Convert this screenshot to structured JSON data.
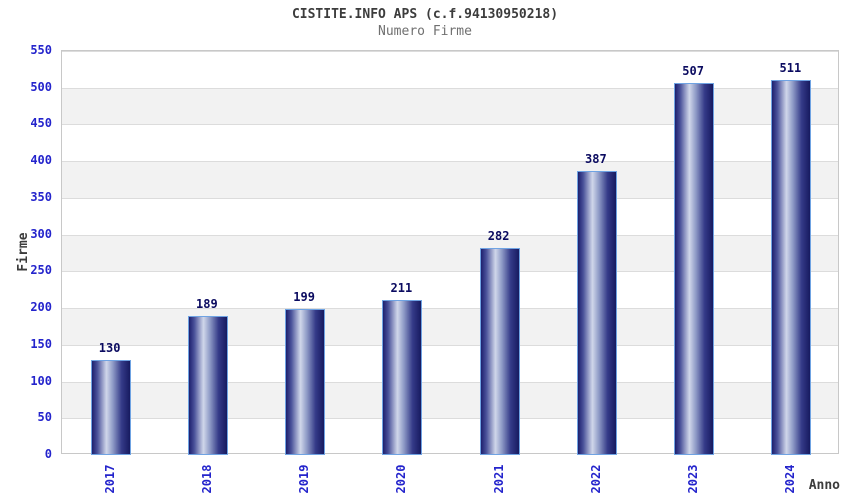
{
  "chart_data": {
    "type": "bar",
    "title": "CISTITE.INFO APS (c.f.94130950218)",
    "subtitle": "Numero Firme",
    "xlabel": "Anno",
    "ylabel": "Firme",
    "categories": [
      "2017",
      "2018",
      "2019",
      "2020",
      "2021",
      "2022",
      "2023",
      "2024"
    ],
    "values": [
      130,
      189,
      199,
      211,
      282,
      387,
      507,
      511
    ],
    "ylim": [
      0,
      550
    ],
    "ytick_step": 50,
    "yticks": [
      0,
      50,
      100,
      150,
      200,
      250,
      300,
      350,
      400,
      450,
      500,
      550
    ],
    "grid": "horizontal",
    "background_bands": "alternating gray/white every 50 units",
    "legend": "none"
  },
  "colors": {
    "title_color": "#3c3c3c",
    "subtitle_color": "#707070",
    "tick_label": "#2424cc",
    "value_label": "#0b0b60",
    "axis_label": "#3c3c3c",
    "band": "#f2f2f2",
    "gridline": "#dcdcdc",
    "axis_line": "#c8c8c8",
    "bar_border": "#6fa3e3",
    "bar_dark": "#1d1f6e",
    "bar_light": "#d0d7ea"
  }
}
